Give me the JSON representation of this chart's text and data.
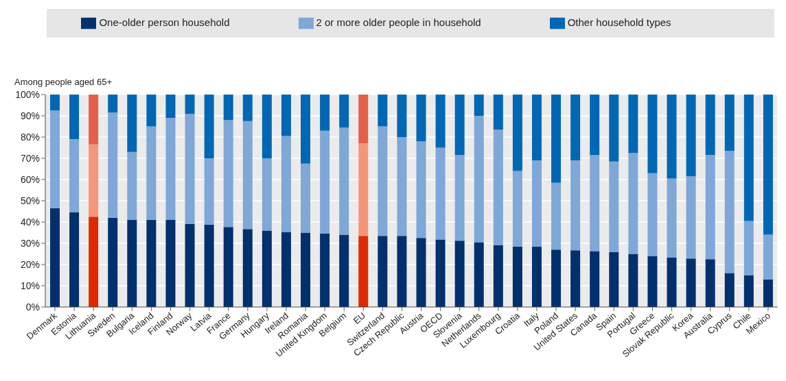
{
  "chart_data": {
    "type": "bar",
    "stacked": true,
    "ylabel": "Among people aged 65+",
    "categories": [
      "Denmark",
      "Estonia",
      "Lithuania",
      "Sweden",
      "Bulgaria",
      "Iceland",
      "Finland",
      "Norway",
      "Latvia",
      "France",
      "Germany",
      "Hungary",
      "Ireland",
      "Romania",
      "United Kingdom",
      "Belgium",
      "EU",
      "Switzerland",
      "Czech Republic",
      "Austria",
      "OECD",
      "Slovenia",
      "Netherlands",
      "Luxembourg",
      "Croatia",
      "Italy",
      "Poland",
      "United States",
      "Canada",
      "Spain",
      "Portugal",
      "Greece",
      "Slovak Republic",
      "Korea",
      "Australia",
      "Cyprus",
      "Chile",
      "Mexico"
    ],
    "series": [
      {
        "name": "One-older person household",
        "color": "#00306e",
        "colors": [
          "#00306e",
          "#00306e",
          "#dd2a00",
          "#00306e",
          "#00306e",
          "#00306e",
          "#00306e",
          "#00306e",
          "#00306e",
          "#00306e",
          "#00306e",
          "#00306e",
          "#00306e",
          "#00306e",
          "#00306e",
          "#00306e",
          "#dd2a00",
          "#00306e",
          "#00306e",
          "#00306e",
          "#00306e",
          "#00306e",
          "#00306e",
          "#00306e",
          "#00306e",
          "#00306e",
          "#00306e",
          "#00306e",
          "#00306e",
          "#00306e",
          "#00306e",
          "#00306e",
          "#00306e",
          "#00306e",
          "#00306e",
          "#00306e",
          "#00306e",
          "#00306e"
        ],
        "values": [
          46.5,
          44.5,
          42.5,
          42,
          41,
          41,
          41,
          39,
          38.8,
          37.7,
          36.7,
          36,
          35.3,
          35,
          34.5,
          34,
          33.5,
          33.5,
          33.5,
          32.5,
          31.8,
          31.2,
          30.5,
          29,
          28.5,
          28.5,
          27,
          26.7,
          26.3,
          25.8,
          25,
          24,
          23.2,
          22.8,
          22.5,
          16,
          15,
          13
        ]
      },
      {
        "name": "2 or more older people in household",
        "color": "#7fa7d8",
        "colors": [
          "#7fa7d8",
          "#7fa7d8",
          "#f5967a",
          "#7fa7d8",
          "#7fa7d8",
          "#7fa7d8",
          "#7fa7d8",
          "#7fa7d8",
          "#7fa7d8",
          "#7fa7d8",
          "#7fa7d8",
          "#7fa7d8",
          "#7fa7d8",
          "#7fa7d8",
          "#7fa7d8",
          "#7fa7d8",
          "#f5967a",
          "#7fa7d8",
          "#7fa7d8",
          "#7fa7d8",
          "#7fa7d8",
          "#7fa7d8",
          "#7fa7d8",
          "#7fa7d8",
          "#7fa7d8",
          "#7fa7d8",
          "#7fa7d8",
          "#7fa7d8",
          "#7fa7d8",
          "#7fa7d8",
          "#7fa7d8",
          "#7fa7d8",
          "#7fa7d8",
          "#7fa7d8",
          "#7fa7d8",
          "#7fa7d8",
          "#7fa7d8",
          "#7fa7d8"
        ],
        "values": [
          46,
          34.5,
          34,
          49.5,
          32,
          44,
          48,
          52,
          31.2,
          50.3,
          50.8,
          34,
          45.2,
          32.5,
          48.5,
          50.5,
          43.5,
          51.5,
          46.5,
          45.5,
          43.2,
          40.3,
          59.5,
          54.5,
          35.5,
          40.5,
          31.5,
          42.3,
          45.2,
          42.7,
          47.5,
          39,
          37.3,
          38.7,
          49,
          57.5,
          25.5,
          21
        ]
      },
      {
        "name": "Other household types",
        "color": "#0067b4",
        "colors": [
          "#0067b4",
          "#0067b4",
          "#e4604a",
          "#0067b4",
          "#0067b4",
          "#0067b4",
          "#0067b4",
          "#0067b4",
          "#0067b4",
          "#0067b4",
          "#0067b4",
          "#0067b4",
          "#0067b4",
          "#0067b4",
          "#0067b4",
          "#0067b4",
          "#e4604a",
          "#0067b4",
          "#0067b4",
          "#0067b4",
          "#0067b4",
          "#0067b4",
          "#0067b4",
          "#0067b4",
          "#0067b4",
          "#0067b4",
          "#0067b4",
          "#0067b4",
          "#0067b4",
          "#0067b4",
          "#0067b4",
          "#0067b4",
          "#0067b4",
          "#0067b4",
          "#0067b4",
          "#0067b4",
          "#0067b4",
          "#0067b4"
        ],
        "values": [
          7.5,
          21,
          23.5,
          8.5,
          27,
          15,
          11,
          9,
          30,
          12,
          12.5,
          30,
          19.5,
          32.5,
          17,
          15.5,
          23,
          15,
          20,
          22,
          25,
          28.5,
          10,
          16.5,
          36,
          31,
          41.5,
          31,
          28.5,
          31.5,
          27.5,
          37,
          39.5,
          38.5,
          28.5,
          26.5,
          59.5,
          66
        ]
      }
    ],
    "ylim": [
      0,
      100
    ],
    "yticks": [
      {
        "value": 0,
        "label": "0%"
      },
      {
        "value": 10,
        "label": "10%"
      },
      {
        "value": 20,
        "label": "20%"
      },
      {
        "value": 30,
        "label": "30%"
      },
      {
        "value": 40,
        "label": "40%"
      },
      {
        "value": 50,
        "label": "50%"
      },
      {
        "value": 60,
        "label": "60%"
      },
      {
        "value": 70,
        "label": "70%"
      },
      {
        "value": 80,
        "label": "80%"
      },
      {
        "value": 90,
        "label": "90%"
      },
      {
        "value": 100,
        "label": "100%"
      }
    ],
    "grid": true,
    "legend": "top"
  }
}
